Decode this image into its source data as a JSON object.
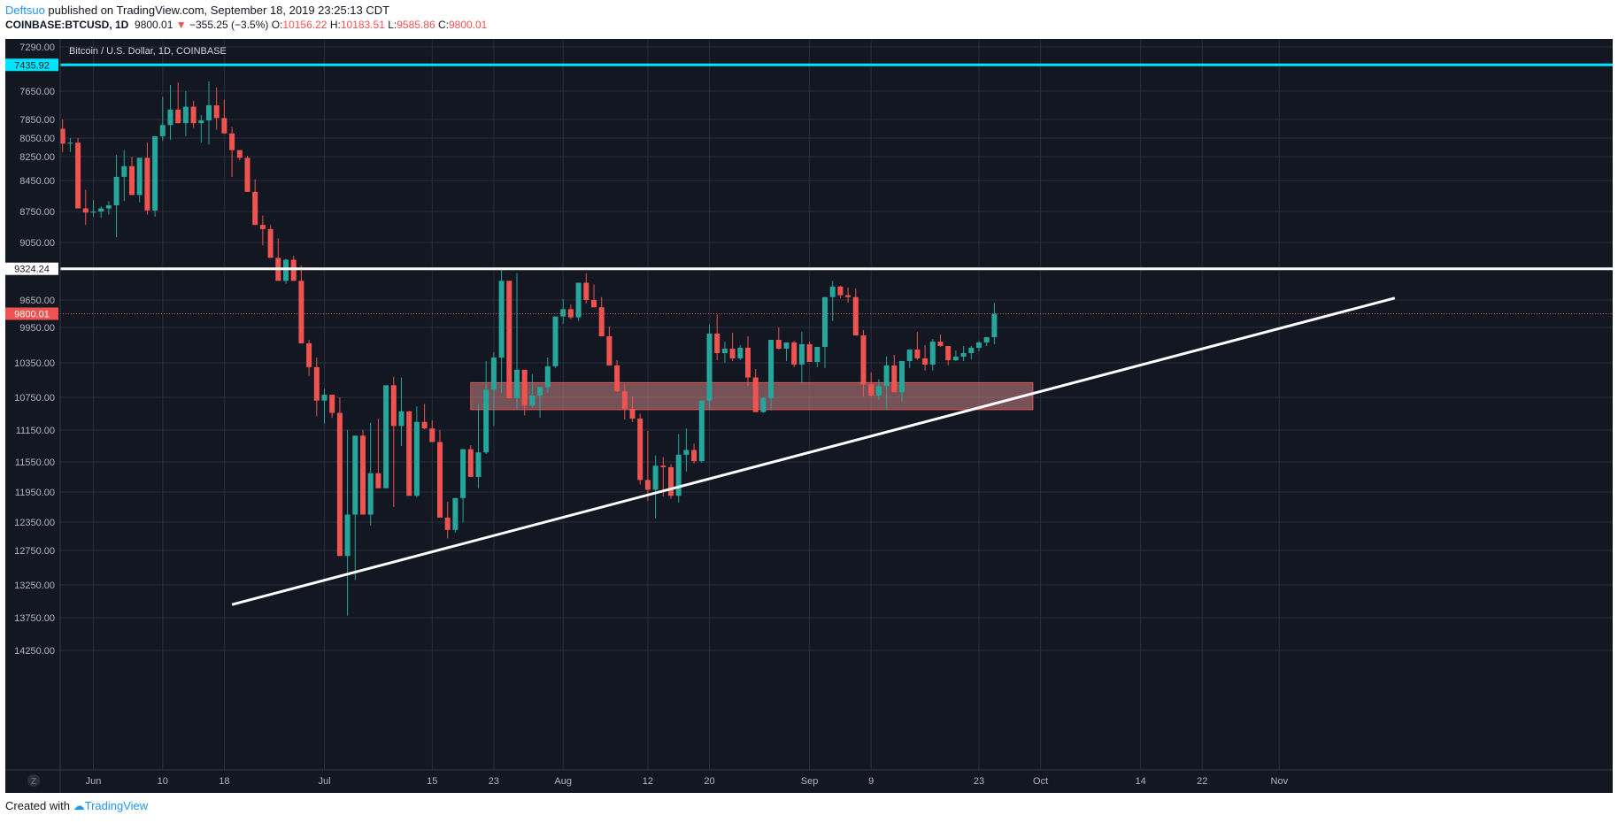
{
  "header": {
    "author": "Deftsuo",
    "published_text": " published on TradingView.com, September 18, 2019 23:25:13 CDT",
    "symbol": "COINBASE:BTCUSD, 1D",
    "last": "9800.01",
    "change_arrow": "▼",
    "change": "−355.25 (−3.5%)",
    "o_label": "O:",
    "o": "10156.22",
    "h_label": "H:",
    "h": "10183.51",
    "l_label": "L:",
    "l": "9585.86",
    "c_label": "C:",
    "c": "9800.01"
  },
  "footer": {
    "created_with": "Created with",
    "brand": "TradingView"
  },
  "colors": {
    "background": "#131722",
    "grid": "#2a2e39",
    "up": "#26a69a",
    "down": "#ef5350",
    "cyan_line": "#00e5ff",
    "white_line": "#ffffff",
    "zone_fill": "#ef9a9a",
    "zone_stroke": "#ef5350"
  },
  "chart_data": {
    "type": "candlestick",
    "title": "Bitcoin / U.S. Dollar, 1D, COINBASE",
    "inverted_y": true,
    "y_ticks": [
      "7290.00",
      "7650.00",
      "7850.00",
      "8050.00",
      "8250.00",
      "8450.00",
      "8750.00",
      "9050.00",
      "9650.00",
      "9950.00",
      "10350.00",
      "10750.00",
      "11150.00",
      "11550.00",
      "11950.00",
      "12350.00",
      "12750.00",
      "13250.00",
      "13750.00",
      "14250.00"
    ],
    "x_ticks": [
      "Jun",
      "10",
      "18",
      "Jul",
      "15",
      "23",
      "Aug",
      "12",
      "20",
      "Sep",
      "9",
      "23",
      "Oct",
      "14",
      "22",
      "Nov"
    ],
    "price_labels": {
      "cyan": "7435.92",
      "white": "9324.24",
      "last": "9800.01"
    },
    "zone": {
      "from": "Jul 20",
      "to": "Oct 1",
      "top": 10580,
      "bottom": 10900
    },
    "trendline": {
      "start": [
        "Jun 19",
        13550
      ],
      "end": [
        "Nov 8",
        9630
      ]
    },
    "axis_badge": "Z",
    "candles": [
      [
        7680,
        7560,
        8060,
        7950
      ],
      [
        7950,
        7850,
        8200,
        8110
      ],
      [
        8110,
        8050,
        8200,
        8100
      ],
      [
        8100,
        8050,
        8600,
        8720
      ],
      [
        8720,
        8540,
        8880,
        8760
      ],
      [
        8760,
        8640,
        8800,
        8750
      ],
      [
        8750,
        8700,
        8810,
        8720
      ],
      [
        8720,
        8650,
        8780,
        8690
      ],
      [
        8690,
        8230,
        9000,
        8420
      ],
      [
        8420,
        8180,
        8650,
        8330
      ],
      [
        8330,
        8250,
        8510,
        8590
      ],
      [
        8590,
        8420,
        8660,
        8260
      ],
      [
        8260,
        8100,
        8780,
        8740
      ],
      [
        8740,
        8090,
        8800,
        8030
      ],
      [
        8030,
        7690,
        8080,
        7910
      ],
      [
        7910,
        7600,
        8070,
        7780
      ],
      [
        7780,
        7580,
        7800,
        7890
      ],
      [
        7890,
        7650,
        8030,
        7760
      ],
      [
        7760,
        7720,
        7940,
        7890
      ],
      [
        7890,
        7820,
        8100,
        7860
      ],
      [
        7860,
        7570,
        8120,
        7750
      ],
      [
        7750,
        7620,
        7960,
        7840
      ],
      [
        7840,
        7710,
        7920,
        8000
      ],
      [
        8000,
        7930,
        8420,
        8180
      ],
      [
        8180,
        8190,
        8280,
        8260
      ],
      [
        8260,
        8240,
        8510,
        8560
      ],
      [
        8560,
        8440,
        8700,
        8880
      ],
      [
        8880,
        8790,
        9080,
        8920
      ],
      [
        8920,
        8880,
        9170,
        9210
      ],
      [
        9210,
        9010,
        9420,
        9450
      ],
      [
        9450,
        9220,
        9480,
        9230
      ],
      [
        9230,
        9190,
        9380,
        9450
      ],
      [
        9450,
        9290,
        9680,
        10130
      ],
      [
        10130,
        10090,
        10500,
        10400
      ],
      [
        10400,
        10290,
        10980,
        10790
      ],
      [
        10790,
        10650,
        11070,
        10720
      ],
      [
        10720,
        10800,
        11000,
        10940
      ],
      [
        10940,
        10750,
        11580,
        12830
      ],
      [
        12830,
        11150,
        13720,
        12250
      ],
      [
        12250,
        11640,
        13180,
        11220
      ],
      [
        11220,
        11150,
        12000,
        12250
      ],
      [
        12250,
        11060,
        12400,
        11700
      ],
      [
        11700,
        11010,
        11900,
        11900
      ],
      [
        11900,
        10740,
        11900,
        10610
      ],
      [
        10610,
        10510,
        12150,
        11100
      ],
      [
        11100,
        10520,
        11350,
        10920
      ],
      [
        10920,
        10930,
        11800,
        12000
      ],
      [
        12000,
        10860,
        12020,
        11050
      ],
      [
        11050,
        10830,
        11140,
        11130
      ],
      [
        11130,
        11030,
        11300,
        11300
      ],
      [
        11300,
        11150,
        11800,
        12290
      ],
      [
        12290,
        12080,
        12580,
        12460
      ],
      [
        12460,
        12170,
        12500,
        12030
      ],
      [
        12030,
        11630,
        12350,
        11390
      ],
      [
        11390,
        11340,
        11700,
        11750
      ],
      [
        11750,
        10830,
        11900,
        11430
      ],
      [
        11430,
        10330,
        11450,
        10660
      ],
      [
        10660,
        10230,
        11100,
        10290
      ],
      [
        10290,
        9320,
        10700,
        9450
      ],
      [
        9450,
        9550,
        10550,
        10760
      ],
      [
        10760,
        9370,
        10900,
        10430
      ],
      [
        10430,
        10530,
        10970,
        10850
      ],
      [
        10850,
        10480,
        10870,
        10730
      ],
      [
        10730,
        10810,
        11000,
        10630
      ],
      [
        10630,
        10290,
        10700,
        10390
      ],
      [
        10390,
        9990,
        10410,
        9830
      ],
      [
        9830,
        9640,
        9910,
        9750
      ],
      [
        9750,
        9700,
        9860,
        9840
      ],
      [
        9840,
        9570,
        9880,
        9470
      ],
      [
        9470,
        9370,
        9690,
        9650
      ],
      [
        9650,
        9490,
        9720,
        9730
      ],
      [
        9730,
        9620,
        9880,
        10050
      ],
      [
        10050,
        9940,
        10150,
        10380
      ],
      [
        10380,
        10320,
        10690,
        10680
      ],
      [
        10680,
        10600,
        11020,
        10890
      ],
      [
        10890,
        10740,
        11050,
        11010
      ],
      [
        11010,
        10950,
        11850,
        11790
      ],
      [
        11790,
        11160,
        12070,
        11920
      ],
      [
        11920,
        11470,
        12300,
        11600
      ],
      [
        11600,
        11490,
        12010,
        11620
      ],
      [
        11620,
        11580,
        12040,
        12000
      ],
      [
        12000,
        11200,
        12090,
        11460
      ],
      [
        11460,
        11130,
        11680,
        11400
      ],
      [
        11400,
        11320,
        11570,
        11540
      ],
      [
        11540,
        10890,
        11560,
        10790
      ],
      [
        10790,
        9920,
        10900,
        10020
      ],
      [
        10020,
        9810,
        10320,
        10240
      ],
      [
        10240,
        10110,
        10350,
        10190
      ],
      [
        10190,
        10010,
        10330,
        10300
      ],
      [
        10300,
        10150,
        10320,
        10180
      ],
      [
        10180,
        10050,
        10620,
        10520
      ],
      [
        10520,
        10420,
        10930,
        10930
      ],
      [
        10930,
        10750,
        10940,
        10760
      ],
      [
        10760,
        10170,
        10910,
        10090
      ],
      [
        10090,
        9950,
        10200,
        10190
      ],
      [
        10190,
        10160,
        10330,
        10120
      ],
      [
        10120,
        10100,
        10400,
        10370
      ],
      [
        10370,
        10000,
        10590,
        10140
      ],
      [
        10140,
        10110,
        10260,
        10340
      ],
      [
        10340,
        10230,
        10400,
        10170
      ],
      [
        10170,
        10050,
        10410,
        9620
      ],
      [
        9620,
        9450,
        9880,
        9510
      ],
      [
        9510,
        9500,
        9630,
        9600
      ],
      [
        9600,
        9520,
        9680,
        9620
      ],
      [
        9620,
        9530,
        9920,
        10040
      ],
      [
        10040,
        9980,
        10740,
        10600
      ],
      [
        10600,
        10460,
        10750,
        10730
      ],
      [
        10730,
        10540,
        10780,
        10620
      ],
      [
        10620,
        10280,
        10900,
        10380
      ],
      [
        10380,
        10260,
        10670,
        10690
      ],
      [
        10690,
        10450,
        10810,
        10330
      ],
      [
        10330,
        10230,
        10410,
        10200
      ],
      [
        10200,
        10000,
        10320,
        10300
      ],
      [
        10300,
        10150,
        10440,
        10370
      ],
      [
        10370,
        10080,
        10440,
        10110
      ],
      [
        10110,
        10030,
        10170,
        10160
      ],
      [
        10160,
        10270,
        10380,
        10320
      ],
      [
        10320,
        10210,
        10330,
        10280
      ],
      [
        10280,
        10160,
        10330,
        10240
      ],
      [
        10240,
        10160,
        10310,
        10180
      ],
      [
        10180,
        10100,
        10220,
        10120
      ],
      [
        10120,
        10070,
        10160,
        10060
      ],
      [
        10060,
        9680,
        10140,
        9800
      ]
    ]
  }
}
